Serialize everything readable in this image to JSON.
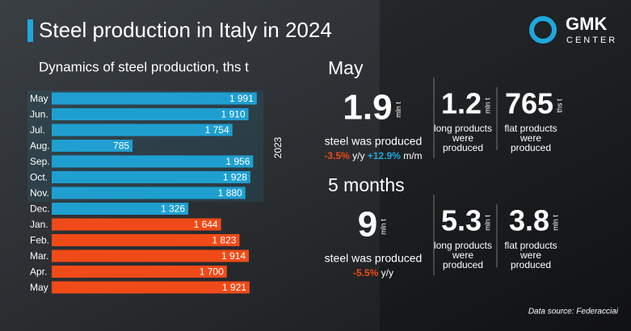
{
  "header": {
    "title": "Steel production in Italy in 2024",
    "logo_top": "GMK",
    "logo_bottom": "CENTER"
  },
  "chart_data": {
    "type": "hbar",
    "title": "Dynamics of steel production, ths t",
    "categories": [
      "May",
      "Jun.",
      "Jul.",
      "Aug.",
      "Sep.",
      "Oct.",
      "Nov.",
      "Dec.",
      "Jan.",
      "Feb.",
      "Mar.",
      "Apr.",
      "May"
    ],
    "values": [
      1991,
      1910,
      1754,
      785,
      1956,
      1928,
      1880,
      1326,
      1644,
      1823,
      1914,
      1700,
      1921
    ],
    "value_labels": [
      "1 991",
      "1 910",
      "1 754",
      "785",
      "1 956",
      "1 928",
      "1 880",
      "1 326",
      "1 644",
      "1 823",
      "1 914",
      "1 700",
      "1 921"
    ],
    "bar_colors": [
      "#1f9fd0",
      "#1f9fd0",
      "#1f9fd0",
      "#1f9fd0",
      "#1f9fd0",
      "#1f9fd0",
      "#1f9fd0",
      "#1f9fd0",
      "#f04a18",
      "#f04a18",
      "#f04a18",
      "#f04a18",
      "#f04a18"
    ],
    "group_label": "2023",
    "xlim": [
      0,
      2000
    ]
  },
  "panel": {
    "month": {
      "heading": "May",
      "main": {
        "value": "1.9",
        "unit": "mln t",
        "caption": "steel was produced",
        "change1": "-3.5%",
        "change1_unit": "y/y",
        "change2": "+12.9%",
        "change2_unit": "m/m"
      },
      "long": {
        "value": "1.2",
        "unit": "mln t",
        "caption": [
          "long products",
          "were",
          "produced"
        ]
      },
      "flat": {
        "value": "765",
        "unit": "ths t",
        "caption": [
          "flat products",
          "were",
          "produced"
        ]
      }
    },
    "period": {
      "heading": "5 months",
      "main": {
        "value": "9",
        "unit": "mln t",
        "caption": "steel was produced",
        "change1": "-5.5%",
        "change1_unit": "y/y"
      },
      "long": {
        "value": "5.3",
        "unit": "mln t",
        "caption": [
          "long products",
          "were",
          "produced"
        ]
      },
      "flat": {
        "value": "3.8",
        "unit": "mln t",
        "caption": [
          "flat products",
          "were",
          "produced"
        ]
      }
    }
  },
  "footer": {
    "source": "Data source: Federacciai"
  }
}
